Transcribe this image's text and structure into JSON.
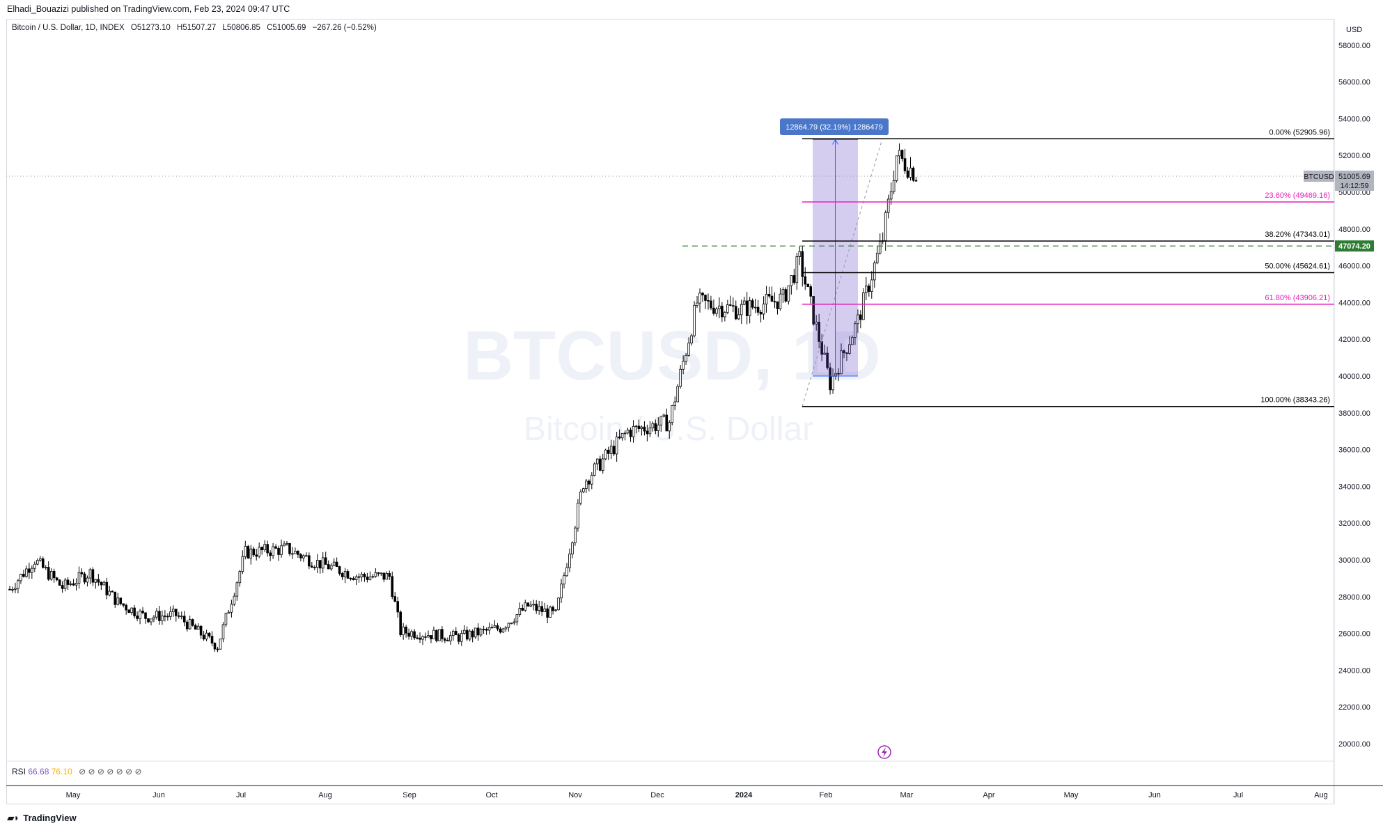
{
  "header": {
    "published_by": "Elhadi_Bouazizi published on TradingView.com, Feb 23, 2024 09:47 UTC"
  },
  "legend": {
    "symbol": "Bitcoin / U.S. Dollar, 1D, INDEX",
    "open": "O51273.10",
    "high": "H51507.27",
    "low": "L50806.85",
    "close": "C51005.69",
    "change": "−267.26 (−0.52%)"
  },
  "watermark": {
    "symbol": "BTCUSD, 1D",
    "name": "Bitcoin / U.S. Dollar"
  },
  "currency": "USD",
  "price_badge": {
    "symbol": "BTCUSD",
    "price": "51005.69",
    "countdown": "14:12:59"
  },
  "dashed_level": {
    "value": 47074.2,
    "label": "47074.20",
    "color": "#2e7d32"
  },
  "measure": {
    "label": "12864.79 (32.19%) 1286479",
    "from_price": 40000,
    "to_price": 52865
  },
  "fib": [
    {
      "label": "0.00% (52905.96)",
      "price": 52905.96,
      "color": "#000000"
    },
    {
      "label": "23.60% (49469.16)",
      "price": 49469.16,
      "color": "#e91ebe"
    },
    {
      "label": "38.20% (47343.01)",
      "price": 47343.01,
      "color": "#000000"
    },
    {
      "label": "50.00% (45624.61)",
      "price": 45624.61,
      "color": "#000000"
    },
    {
      "label": "61.80% (43906.21)",
      "price": 43906.21,
      "color": "#e91ebe"
    },
    {
      "label": "100.00% (38343.26)",
      "price": 38343.26,
      "color": "#000000"
    }
  ],
  "rsi": {
    "label": "RSI",
    "value1": "66.68",
    "value2": "76.10"
  },
  "footer": {
    "brand": "TradingView"
  },
  "chart_data": {
    "type": "candlestick",
    "ylim": [
      19000,
      59000
    ],
    "y_ticks": [
      "58000.00",
      "56000.00",
      "54000.00",
      "52000.00",
      "50000.00",
      "48000.00",
      "46000.00",
      "44000.00",
      "42000.00",
      "40000.00",
      "38000.00",
      "36000.00",
      "34000.00",
      "32000.00",
      "30000.00",
      "28000.00",
      "26000.00",
      "24000.00",
      "22000.00",
      "20000.00"
    ],
    "x_ticks": [
      "May",
      "Jun",
      "Jul",
      "Aug",
      "Sep",
      "Oct",
      "Nov",
      "Dec",
      "2024",
      "Feb",
      "Mar",
      "Apr",
      "May",
      "Jun",
      "Jul",
      "Aug"
    ],
    "close_series": [
      {
        "date": "2023-04-01",
        "close": 28400
      },
      {
        "date": "2023-04-10",
        "close": 30000
      },
      {
        "date": "2023-04-20",
        "close": 28500
      },
      {
        "date": "2023-04-30",
        "close": 29300
      },
      {
        "date": "2023-05-10",
        "close": 27700
      },
      {
        "date": "2023-05-20",
        "close": 26900
      },
      {
        "date": "2023-05-31",
        "close": 27000
      },
      {
        "date": "2023-06-15",
        "close": 25300
      },
      {
        "date": "2023-06-25",
        "close": 30400
      },
      {
        "date": "2023-07-10",
        "close": 30600
      },
      {
        "date": "2023-07-20",
        "close": 29900
      },
      {
        "date": "2023-08-05",
        "close": 29100
      },
      {
        "date": "2023-08-16",
        "close": 29100
      },
      {
        "date": "2023-08-20",
        "close": 26100
      },
      {
        "date": "2023-09-10",
        "close": 25800
      },
      {
        "date": "2023-09-25",
        "close": 26300
      },
      {
        "date": "2023-10-05",
        "close": 27500
      },
      {
        "date": "2023-10-15",
        "close": 27000
      },
      {
        "date": "2023-10-25",
        "close": 34200
      },
      {
        "date": "2023-11-10",
        "close": 37000
      },
      {
        "date": "2023-11-25",
        "close": 37500
      },
      {
        "date": "2023-12-05",
        "close": 44000
      },
      {
        "date": "2023-12-20",
        "close": 43600
      },
      {
        "date": "2024-01-05",
        "close": 44200
      },
      {
        "date": "2024-01-11",
        "close": 46300
      },
      {
        "date": "2024-01-22",
        "close": 39600
      },
      {
        "date": "2024-02-01",
        "close": 43000
      },
      {
        "date": "2024-02-10",
        "close": 47500
      },
      {
        "date": "2024-02-15",
        "close": 52000
      },
      {
        "date": "2024-02-22",
        "close": 51000
      }
    ]
  }
}
